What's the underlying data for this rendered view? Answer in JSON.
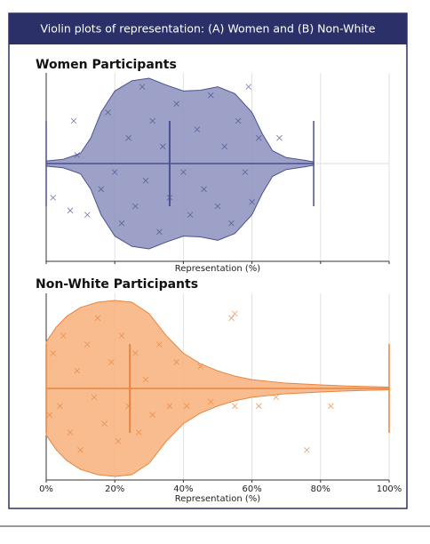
{
  "header": {
    "title": "Violin plots of representation: (A) Women and (B) Non-White"
  },
  "chart_data": [
    {
      "type": "violin",
      "title": "Women Participants",
      "xlabel": "Representation (%)",
      "xlim": [
        0,
        100
      ],
      "xticks": [
        0,
        20,
        40,
        60,
        80,
        100
      ],
      "show_tick_labels": false,
      "grid": true,
      "fill": "#8c90bd",
      "color": "#4a5190",
      "density": {
        "x": [
          0,
          5,
          10,
          13,
          16,
          20,
          25,
          30,
          35,
          40,
          45,
          50,
          55,
          60,
          63,
          66,
          70,
          75,
          78
        ],
        "half_width": [
          0.03,
          0.05,
          0.12,
          0.3,
          0.6,
          0.85,
          0.97,
          1.0,
          0.92,
          0.85,
          0.86,
          0.9,
          0.82,
          0.6,
          0.35,
          0.15,
          0.07,
          0.04,
          0.02
        ]
      },
      "min": 0,
      "max": 78,
      "median": 36,
      "points": {
        "x": [
          2,
          7,
          9,
          12,
          16,
          18,
          20,
          22,
          24,
          26,
          28,
          29,
          31,
          33,
          34,
          36,
          38,
          40,
          42,
          44,
          46,
          48,
          50,
          52,
          54,
          56,
          58,
          60,
          62,
          68,
          59,
          8
        ],
        "jitter": [
          0.4,
          0.55,
          -0.1,
          0.6,
          0.3,
          -0.6,
          0.1,
          0.7,
          -0.3,
          0.5,
          -0.9,
          0.2,
          -0.5,
          0.8,
          -0.2,
          0.4,
          -0.7,
          0.1,
          0.6,
          -0.4,
          0.3,
          -0.8,
          0.5,
          -0.2,
          0.7,
          -0.5,
          0.1,
          0.45,
          -0.3,
          -0.3,
          -0.9,
          -0.5
        ]
      }
    },
    {
      "type": "violin",
      "title": "Non-White Participants",
      "xlabel": "Representation (%)",
      "xlim": [
        0,
        100
      ],
      "xticks": [
        {
          "value": 0,
          "label": "0%"
        },
        {
          "value": 20,
          "label": "20%"
        },
        {
          "value": 40,
          "label": "40%"
        },
        {
          "value": 60,
          "label": "60%"
        },
        {
          "value": 80,
          "label": "80%"
        },
        {
          "value": 100,
          "label": "100%"
        }
      ],
      "show_tick_labels": true,
      "grid": true,
      "fill": "#f7b07a",
      "color": "#e8843f",
      "density": {
        "x": [
          0,
          3,
          6,
          10,
          15,
          20,
          25,
          30,
          35,
          40,
          45,
          50,
          55,
          60,
          70,
          80,
          90,
          100
        ],
        "half_width": [
          0.53,
          0.7,
          0.82,
          0.92,
          0.98,
          1.0,
          0.98,
          0.85,
          0.6,
          0.4,
          0.28,
          0.2,
          0.14,
          0.1,
          0.06,
          0.04,
          0.025,
          0.015
        ]
      },
      "min": 0,
      "max": 100,
      "median": 24.4,
      "points": {
        "x": [
          1,
          2,
          4,
          5,
          7,
          9,
          10,
          12,
          14,
          15,
          17,
          19,
          21,
          22,
          24,
          26,
          27,
          29,
          31,
          33,
          36,
          38,
          41,
          45,
          48,
          55,
          62,
          67,
          76,
          83,
          54,
          55
        ],
        "jitter": [
          0.3,
          -0.4,
          0.2,
          -0.6,
          0.5,
          -0.2,
          0.7,
          -0.5,
          0.1,
          -0.8,
          0.4,
          -0.3,
          0.6,
          -0.6,
          0.2,
          -0.4,
          0.5,
          -0.1,
          0.3,
          -0.5,
          0.2,
          -0.3,
          0.2,
          -0.25,
          0.15,
          0.2,
          0.2,
          0.1,
          0.7,
          0.2,
          -0.8,
          -0.85
        ]
      }
    }
  ]
}
